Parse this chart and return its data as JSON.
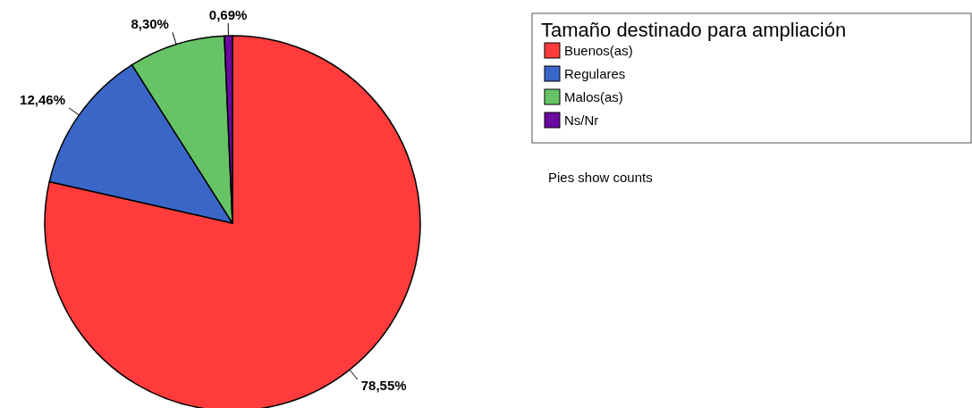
{
  "chart_data": {
    "type": "pie",
    "legend_title": "Tamaño destinado para ampliación",
    "categories": [
      "Buenos(as)",
      "Regulares",
      "Malos(as)",
      "Ns/Nr"
    ],
    "values": [
      78.55,
      12.46,
      8.3,
      0.69
    ],
    "colors": [
      "#ff3b3b",
      "#3a66c8",
      "#66c466",
      "#6a0aa0"
    ],
    "value_labels": [
      "78,55%",
      "12,46%",
      "8,30%",
      "0,69%"
    ],
    "legend": "top right",
    "annotations": [
      "Pies show counts"
    ]
  }
}
